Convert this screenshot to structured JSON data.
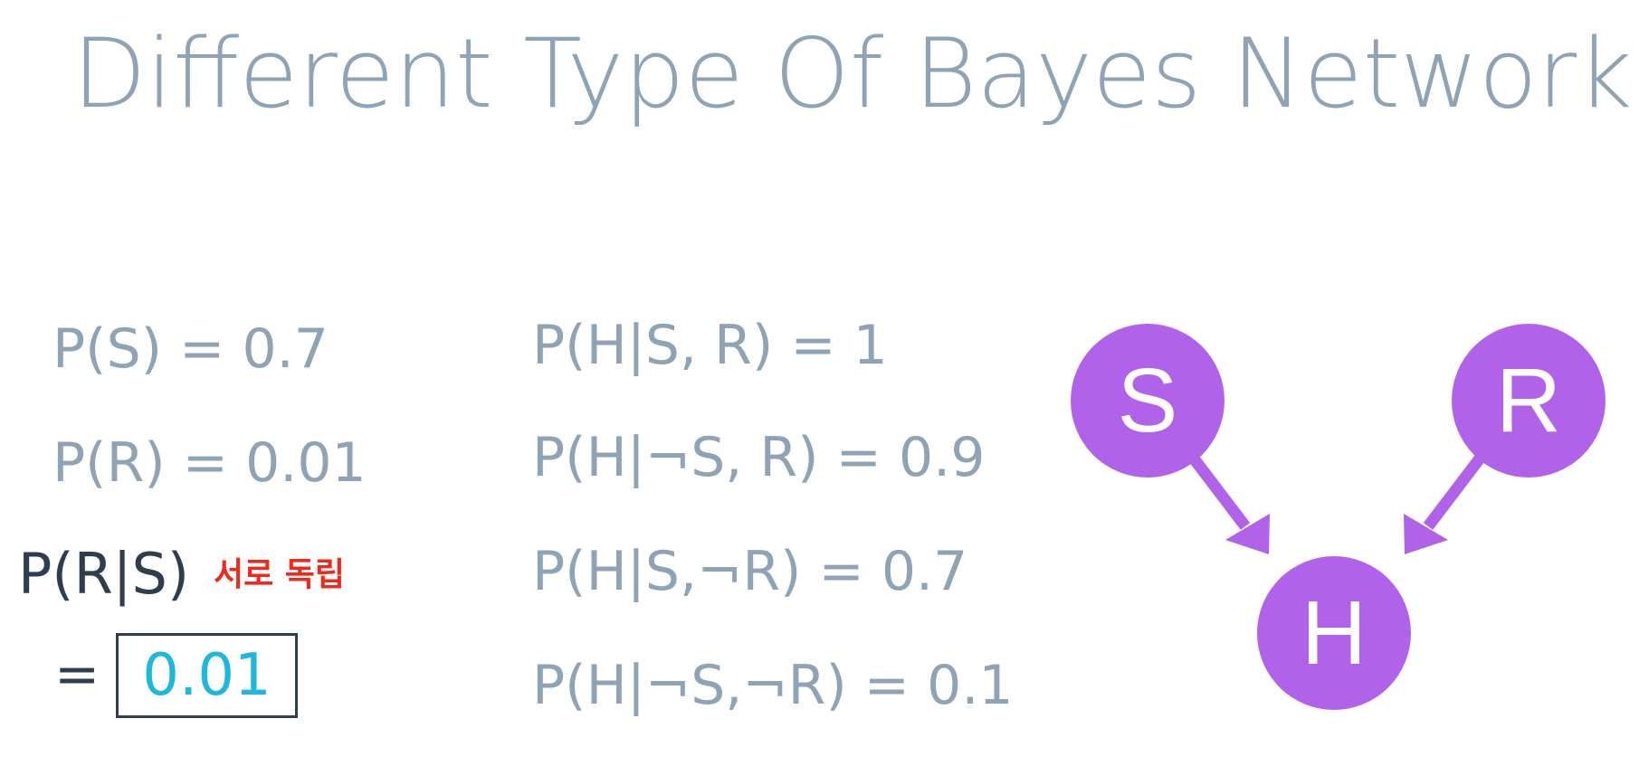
{
  "title": "Different Type Of Bayes Network",
  "priors": {
    "p_s": "P(S) = 0.7",
    "p_r": "P(R) = 0.01"
  },
  "question": {
    "expr": "P(R|S)",
    "note": "서로 독립",
    "equals": "=",
    "answer": "0.01"
  },
  "conditionals": [
    "P(H|S, R) = 1",
    "P(H|¬S, R) = 0.9",
    "P(H|S,¬R) = 0.7",
    "P(H|¬S,¬R) = 0.1"
  ],
  "network": {
    "nodes": [
      {
        "id": "S",
        "label": "S"
      },
      {
        "id": "R",
        "label": "R"
      },
      {
        "id": "H",
        "label": "H"
      }
    ],
    "edges": [
      {
        "from": "S",
        "to": "H"
      },
      {
        "from": "R",
        "to": "H"
      }
    ],
    "node_color": "#b063e8",
    "label_color": "#ffffff"
  }
}
